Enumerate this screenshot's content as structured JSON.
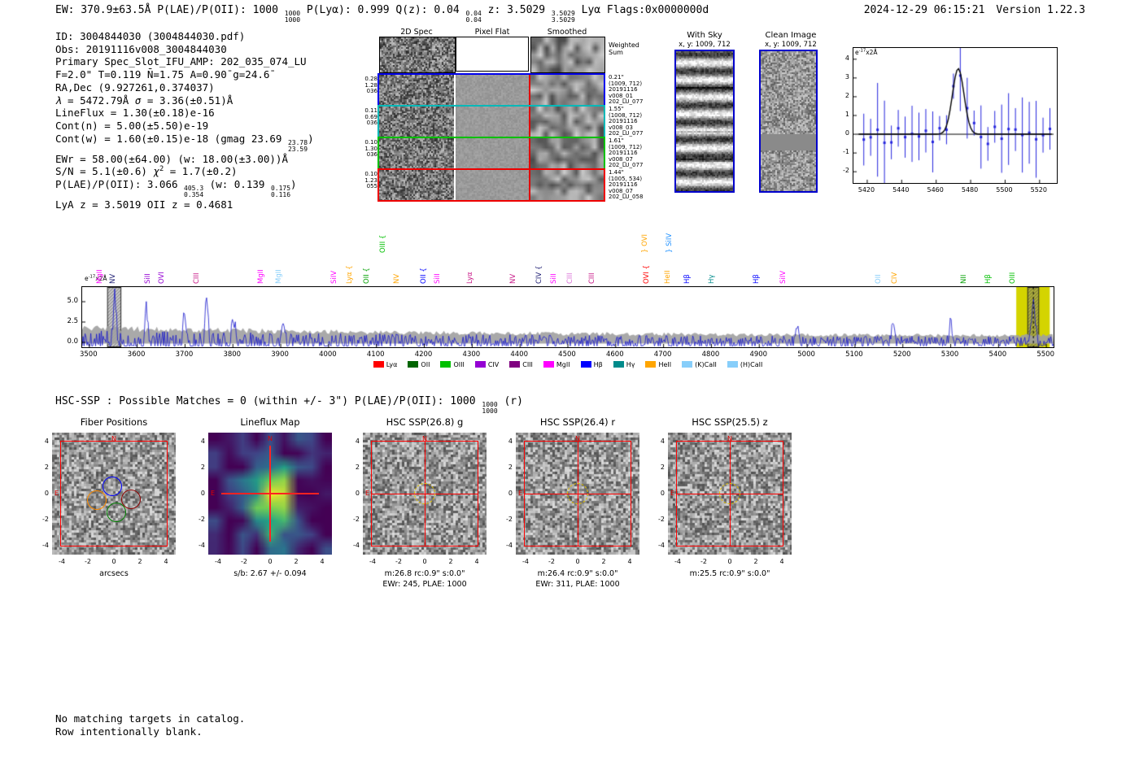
{
  "header": {
    "left_parts": [
      {
        "t": "EW: 370.9±63.5Å  P(LAE)/P(OII): 1000 "
      },
      {
        "f": [
          "1000",
          "1000"
        ]
      },
      {
        "t": "  P(Lyα): 0.999  Q(z): 0.04 "
      },
      {
        "f": [
          "0.04",
          "0.04"
        ]
      },
      {
        "t": "  z: 3.5029 "
      },
      {
        "f": [
          "3.5029",
          "3.5029"
        ]
      },
      {
        "t": " Lyα  Flags:0x0000000d"
      }
    ],
    "timestamp": "2024-12-29 06:15:21",
    "version": "Version 1.22.3"
  },
  "info_lines": [
    [
      {
        "t": "ID: 3004844030 (3004844030.pdf)"
      }
    ],
    [
      {
        "t": "Obs: 20191116v008_3004844030"
      }
    ],
    [
      {
        "t": "Primary Spec_Slot_IFU_AMP: 202_035_074_LU"
      }
    ],
    [
      {
        "t": "F=2.0\"  T=0.119  N̄=1.75  A=0.90̄  g=24.6̄"
      }
    ],
    [
      {
        "t": "RA,Dec (9.927261,0.374037)"
      }
    ],
    [
      {
        "t": "λ",
        "it": 1
      },
      {
        "t": " = 5472.79Å  "
      },
      {
        "t": "σ",
        "it": 1
      },
      {
        "t": " = 3.36(±0.51)Å"
      }
    ],
    [
      {
        "t": "LineFlux = 1.30(±0.18)e-16"
      }
    ],
    [
      {
        "t": "Cont(n) = 5.00(±5.50)e-19"
      }
    ],
    [
      {
        "t": "Cont(w) = 1.60(±0.15)e-18 (gmag 23.69 "
      },
      {
        "f": [
          "23.78",
          "23.59"
        ]
      },
      {
        "t": ")"
      }
    ],
    [
      {
        "t": "EWr = 58.00(±64.00) (w: 18.00(±3.00))Å"
      }
    ],
    [
      {
        "t": "S/N = 5.1(±0.6)   "
      },
      {
        "t": "χ",
        "it": 1
      },
      {
        "t": "2",
        "sup": 1
      },
      {
        "t": " = 1.7(±0.2)"
      }
    ],
    [
      {
        "t": "P(LAE)/P(OII): 3.066 "
      },
      {
        "f": [
          "405.3",
          "0.354"
        ]
      },
      {
        "t": " (w: 0.139 "
      },
      {
        "f": [
          "0.175",
          "0.116"
        ]
      },
      {
        "t": ")"
      }
    ],
    [
      {
        "t": "LyA z = 3.5019  OII z = 0.4681"
      }
    ]
  ],
  "cutouts2d": {
    "col_titles": [
      "2D Spec",
      "Pixel Flat",
      "Smoothed"
    ],
    "weighted_label": [
      "Weighted",
      "Sum"
    ],
    "rows": [
      {
        "left": [
          "0.28",
          "1.28",
          "036"
        ],
        "right": [
          "0.21\"",
          "(1009, 712)",
          "20191116",
          "v008_01",
          "202_LU_077"
        ],
        "border": "#0000ee"
      },
      {
        "left": [
          "0.11",
          "0.69",
          "036"
        ],
        "right": [
          "1.55\"",
          "(1008, 712)",
          "20191116",
          "v008_03",
          "202_LU_077"
        ],
        "border": "#00b8b8"
      },
      {
        "left": [
          "0.10",
          "1.30",
          "036"
        ],
        "right": [
          "1.61\"",
          "(1009, 712)",
          "20191116",
          "v008_07",
          "202_LU_077"
        ],
        "border": "#00c000"
      },
      {
        "left": [
          "0.10",
          "1.23",
          "055"
        ],
        "right": [
          "1.44\"",
          "(1005, 534)",
          "20191116",
          "v008_07",
          "202_LU_058"
        ],
        "border": "#ee0000"
      }
    ]
  },
  "with_sky": {
    "title": "With Sky",
    "coords": "x, y: 1009, 712"
  },
  "clean_image": {
    "title": "Clean Image",
    "coords": "x, y: 1009, 712"
  },
  "hsc_line": {
    "parts": [
      {
        "t": "HSC-SSP : Possible Matches = 0 (within +/- 3\")  P(LAE)/P(OII): 1000 "
      },
      {
        "f": [
          "1000",
          "1000"
        ]
      },
      {
        "t": " (r)"
      }
    ]
  },
  "chart_data": [
    {
      "id": "line_fit_inset",
      "type": "line",
      "title": "",
      "unit": {
        "base": "e",
        "exp": "-17",
        "suffix": "x2Å"
      },
      "x_ticks": [
        5420,
        5440,
        5460,
        5480,
        5500,
        5520
      ],
      "y_ticks": [
        4,
        3,
        2,
        1,
        0,
        -1,
        -2
      ],
      "xlim": [
        5412,
        5530
      ],
      "ylim": [
        -2.6,
        4.6
      ],
      "fit": {
        "center": 5472.79,
        "sigma": 3.36,
        "amplitude": 3.5
      },
      "series": [
        {
          "name": "observed",
          "style": "errorbar",
          "color": "#2424dd",
          "seed": 11,
          "step": 4,
          "noise": 1.1,
          "err_min": 0.6,
          "err_max": 2.0
        },
        {
          "name": "gaussian_fit",
          "style": "line",
          "color": "#000000"
        }
      ],
      "grid": false,
      "legend_position": "none"
    },
    {
      "id": "full_spectrum",
      "type": "line",
      "unit": {
        "base": "e",
        "exp": "-17",
        "suffix": "x2Å"
      },
      "x_ticks": [
        3500,
        3600,
        3700,
        3800,
        3900,
        4000,
        4100,
        4200,
        4300,
        4400,
        4500,
        4600,
        4700,
        4800,
        4900,
        5000,
        5100,
        5200,
        5300,
        5400,
        5500
      ],
      "y_ticks": [
        5.0,
        2.5,
        0.0
      ],
      "xlim": [
        3485,
        5515
      ],
      "ylim": [
        -0.6,
        6.8
      ],
      "noise_seed": 5,
      "emission_peak": {
        "center": 5472.79,
        "sigma": 4.0,
        "amplitude": 4.6
      },
      "spikes": [
        {
          "x": 3553,
          "h": 5.9
        },
        {
          "x": 3620,
          "h": 4.0
        },
        {
          "x": 3699,
          "h": 4.2
        },
        {
          "x": 3745,
          "h": 5.6
        },
        {
          "x": 3801,
          "h": 3.4
        },
        {
          "x": 3905,
          "h": 3.0
        },
        {
          "x": 4980,
          "h": 2.4
        },
        {
          "x": 5180,
          "h": 2.6
        },
        {
          "x": 5300,
          "h": 2.4
        }
      ],
      "highlight": {
        "yellow_band": [
          5437,
          5507
        ],
        "hatch_left": [
          3538,
          3566
        ],
        "hatch_right": [
          5461,
          5484
        ],
        "dashed_line": 5472.79
      },
      "line_labels": [
        {
          "t": "MgII",
          "x": 3521,
          "c": "#ff00ff",
          "tier": 1
        },
        {
          "t": "NV",
          "x": 3548,
          "c": "#191970",
          "tier": 1
        },
        {
          "t": "SiII",
          "x": 3621,
          "c": "#9400d3",
          "tier": 1
        },
        {
          "t": "OVI",
          "x": 3650,
          "c": "#9400d3",
          "tier": 1
        },
        {
          "t": "CIII",
          "x": 3723,
          "c": "#c71585",
          "tier": 1
        },
        {
          "t": "MgII",
          "x": 3858,
          "c": "#ff00ff",
          "tier": 1
        },
        {
          "t": "MgII",
          "x": 3894,
          "c": "#87cefa",
          "tier": 1
        },
        {
          "t": "SiIV",
          "x": 4011,
          "c": "#ff00ff",
          "tier": 1
        },
        {
          "t": "Lyα {",
          "x": 4042,
          "c": "#ffa500",
          "tier": 1
        },
        {
          "t": "OII {",
          "x": 4079,
          "c": "#00a000",
          "tier": 1
        },
        {
          "t": "OIII {",
          "x": 4113,
          "c": "#00c000",
          "tier": 2
        },
        {
          "t": "NV",
          "x": 4142,
          "c": "#ffa500",
          "tier": 1
        },
        {
          "t": "OII {",
          "x": 4198,
          "c": "#0000ff",
          "tier": 1
        },
        {
          "t": "SiII",
          "x": 4227,
          "c": "#ff00ff",
          "tier": 1
        },
        {
          "t": "Lyα",
          "x": 4294,
          "c": "#c71585",
          "tier": 1
        },
        {
          "t": "NV",
          "x": 4384,
          "c": "#c71585",
          "tier": 1
        },
        {
          "t": "CIV {",
          "x": 4439,
          "c": "#191970",
          "tier": 1
        },
        {
          "t": "SiII",
          "x": 4469,
          "c": "#ff00ff",
          "tier": 1
        },
        {
          "t": "CIII",
          "x": 4503,
          "c": "#da70d6",
          "tier": 1
        },
        {
          "t": "CIII",
          "x": 4549,
          "c": "#c71585",
          "tier": 1
        },
        {
          "t": "OVI {",
          "x": 4664,
          "c": "#ff0000",
          "tier": 1
        },
        {
          "t": "} OVI",
          "x": 4660,
          "c": "#ffa500",
          "tier": 2
        },
        {
          "t": "HeII",
          "x": 4707,
          "c": "#ffa500",
          "tier": 1
        },
        {
          "t": "} SiIV",
          "x": 4710,
          "c": "#1e90ff",
          "tier": 2
        },
        {
          "t": "Hβ",
          "x": 4749,
          "c": "#0000ff",
          "tier": 1
        },
        {
          "t": "Hγ",
          "x": 4800,
          "c": "#008b8b",
          "tier": 1
        },
        {
          "t": "Hβ",
          "x": 4893,
          "c": "#0000ff",
          "tier": 1
        },
        {
          "t": "SiIV",
          "x": 4948,
          "c": "#ff00ff",
          "tier": 1
        },
        {
          "t": "OII",
          "x": 5148,
          "c": "#87cefa",
          "tier": 1
        },
        {
          "t": "CIV",
          "x": 5182,
          "c": "#ffa500",
          "tier": 1
        },
        {
          "t": "NII",
          "x": 5326,
          "c": "#00a000",
          "tier": 1
        },
        {
          "t": "Hβ",
          "x": 5377,
          "c": "#00c000",
          "tier": 1
        },
        {
          "t": "OIII",
          "x": 5428,
          "c": "#00c000",
          "tier": 1
        }
      ],
      "legend": [
        {
          "label": "Lyα",
          "color": "#ff0000"
        },
        {
          "label": "OII",
          "color": "#006400"
        },
        {
          "label": "OIII",
          "color": "#00c000"
        },
        {
          "label": "CIV",
          "color": "#9400d3"
        },
        {
          "label": "CIII",
          "color": "#800080"
        },
        {
          "label": "MgII",
          "color": "#ff00ff"
        },
        {
          "label": "Hβ",
          "color": "#0000ff"
        },
        {
          "label": "Hγ",
          "color": "#008b8b"
        },
        {
          "label": "HeII",
          "color": "#ffa500"
        },
        {
          "label": "(K)CaII",
          "color": "#87cefa"
        },
        {
          "label": "(H)CaII",
          "color": "#87cefa"
        }
      ]
    }
  ],
  "bottom_panels": {
    "axis_ticks": {
      "x": [
        -4,
        -2,
        0,
        2,
        4
      ],
      "y": [
        4,
        2,
        0,
        -2,
        -4
      ]
    },
    "compass": {
      "n": "N",
      "e": "E"
    },
    "panels": [
      {
        "title": "Fiber Positions",
        "kind": "fiber",
        "xlabel": "arcsecs",
        "captions": [],
        "fibers": [
          {
            "color": "#0000ff",
            "u": -0.15,
            "v": 0.55
          },
          {
            "color": "#ff8c00",
            "u": -1.3,
            "v": -0.5
          },
          {
            "color": "#008000",
            "u": 0.2,
            "v": -1.45
          },
          {
            "color": "#8b0000",
            "u": 1.3,
            "v": -0.45
          }
        ]
      },
      {
        "title": "Lineflux Map",
        "kind": "flux",
        "xlabel": "",
        "captions": [
          "s/b: 2.67 +/- 0.094"
        ]
      },
      {
        "title": "HSC SSP(26.8) g",
        "kind": "catalog",
        "xlabel": "",
        "captions": [
          "m:26.8 rc:0.9\" s:0.0\"",
          "EWr: 245, PLAE: 1000"
        ]
      },
      {
        "title": "HSC SSP(26.4) r",
        "kind": "catalog",
        "xlabel": "",
        "captions": [
          "m:26.4 rc:0.9\" s:0.0\"",
          "EWr: 311, PLAE: 1000"
        ]
      },
      {
        "title": "HSC SSP(25.5) z",
        "kind": "catalog",
        "xlabel": "",
        "captions": [
          "m:25.5 rc:0.9\" s:0.0\""
        ]
      }
    ]
  },
  "footer_lines": [
    "No matching targets in catalog.",
    "Row intentionally blank."
  ]
}
